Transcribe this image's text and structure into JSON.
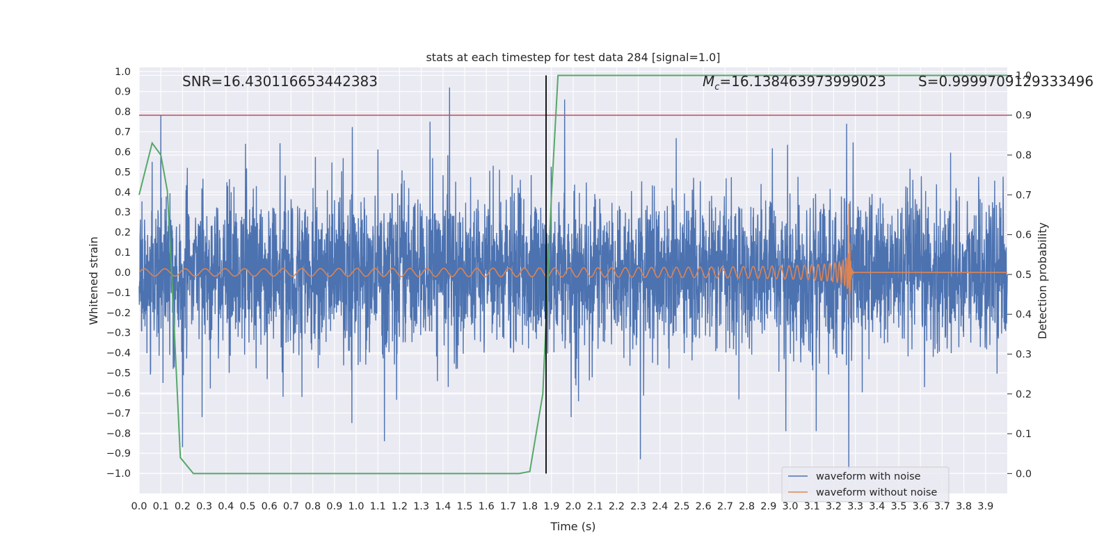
{
  "chart_data": {
    "type": "line",
    "title": "stats at each timestep for test data 284 [signal=1.0]",
    "xlabel": "Time (s)",
    "ylabel": "Whitened strain",
    "y2label": "Detection probability",
    "xlim": [
      0,
      4
    ],
    "ylim": [
      -1.1,
      1.02
    ],
    "y2lim": [
      -0.05,
      1.02
    ],
    "xticks": [
      "0.0",
      "0.1",
      "0.2",
      "0.3",
      "0.4",
      "0.5",
      "0.6",
      "0.7",
      "0.8",
      "0.9",
      "1.0",
      "1.1",
      "1.2",
      "1.3",
      "1.4",
      "1.5",
      "1.6",
      "1.7",
      "1.8",
      "1.9",
      "2.0",
      "2.1",
      "2.2",
      "2.3",
      "2.4",
      "2.5",
      "2.6",
      "2.7",
      "2.8",
      "2.9",
      "3.0",
      "3.1",
      "3.2",
      "3.3",
      "3.4",
      "3.5",
      "3.6",
      "3.7",
      "3.8",
      "3.9"
    ],
    "yticks": [
      "1.0",
      "0.9",
      "0.8",
      "0.7",
      "0.6",
      "0.5",
      "0.4",
      "0.3",
      "0.2",
      "0.1",
      "0.0",
      "−0.1",
      "−0.2",
      "−0.3",
      "−0.4",
      "−0.5",
      "−0.6",
      "−0.7",
      "−0.8",
      "−0.9",
      "−1.0"
    ],
    "y2ticks": [
      "1.0",
      "0.9",
      "0.8",
      "0.7",
      "0.6",
      "0.5",
      "0.4",
      "0.3",
      "0.2",
      "0.1",
      "0.0"
    ],
    "annotations": {
      "snr": "SNR=16.430116653442383",
      "mc_symbol": "M",
      "mc_sub": "c",
      "mc_value": "=16.138463973999023",
      "s_text": "S=0.9999709129333496"
    },
    "threshold_probability": 0.9,
    "vertical_marker_time": 1.875,
    "legend_placement": "lower-right",
    "grid": true,
    "series": [
      {
        "name": "waveform with noise",
        "color": "#4c72b0",
        "description_points": "dense noise, amplitude ~0.3 typical with spikes",
        "spikes": [
          [
            0.06,
            0.55
          ],
          [
            0.1,
            0.78
          ],
          [
            0.11,
            -0.55
          ],
          [
            0.2,
            -0.87
          ],
          [
            0.29,
            -0.72
          ],
          [
            0.49,
            0.64
          ],
          [
            0.75,
            -0.62
          ],
          [
            0.98,
            -0.75
          ],
          [
            1.13,
            -0.84
          ],
          [
            1.34,
            0.75
          ],
          [
            1.43,
            0.92
          ],
          [
            1.46,
            -0.48
          ],
          [
            1.96,
            0.86
          ],
          [
            1.99,
            -0.72
          ],
          [
            2.31,
            -0.93
          ],
          [
            2.98,
            -0.79
          ],
          [
            3.12,
            -0.79
          ],
          [
            3.27,
            -0.98
          ],
          [
            3.26,
            0.74
          ]
        ]
      },
      {
        "name": "waveform without noise",
        "color": "#dd8452",
        "merger_time": 3.27,
        "amp_start": 0.018,
        "amp_peak": 0.75,
        "amp_min_peak": -0.7
      },
      {
        "name": "detection probability",
        "color": "#55a868",
        "axis": "right",
        "points": [
          [
            0.0,
            0.7
          ],
          [
            0.06,
            0.83
          ],
          [
            0.1,
            0.8
          ],
          [
            0.13,
            0.71
          ],
          [
            0.15,
            0.5
          ],
          [
            0.19,
            0.04
          ],
          [
            0.25,
            0.0
          ],
          [
            0.3,
            0.0
          ],
          [
            1.4,
            0.0
          ],
          [
            1.75,
            0.0
          ],
          [
            1.8,
            0.005
          ],
          [
            1.86,
            0.2
          ],
          [
            1.9,
            0.7
          ],
          [
            1.93,
            1.0
          ],
          [
            3.9,
            1.0
          ],
          [
            4.0,
            1.0
          ]
        ]
      },
      {
        "name": "threshold",
        "color": "#c44e52",
        "axis": "right",
        "value": 0.9
      }
    ]
  }
}
